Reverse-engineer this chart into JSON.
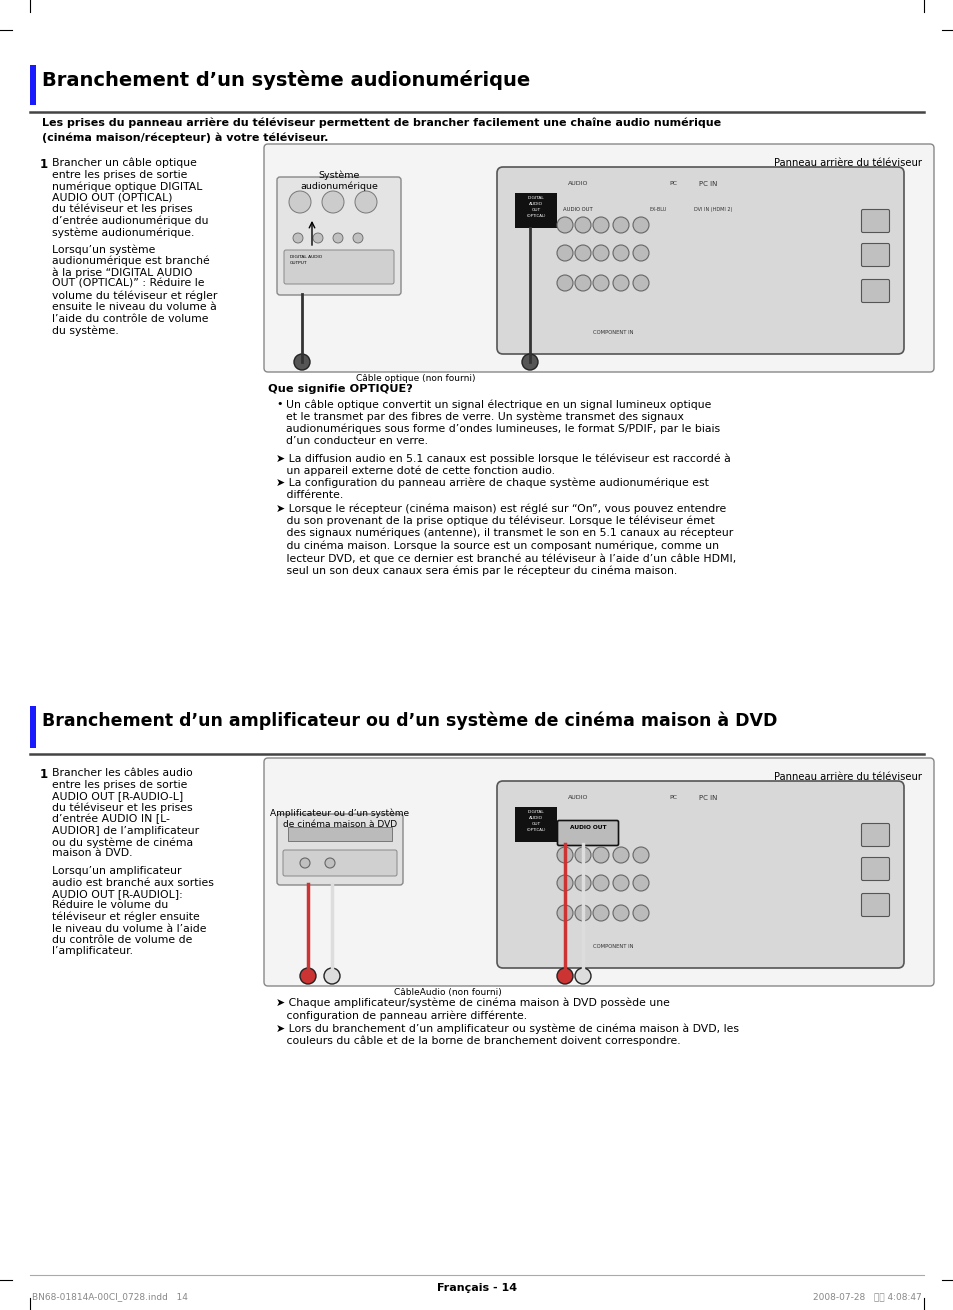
{
  "page_bg": "#ffffff",
  "section1_title": "Branchement d’un système audionumérique",
  "section1_subtitle": "Les prises du panneau arrière du téléviseur permettent de brancher facilement une chaîne audio numérique\n(cinéma maison/récepteur) à votre téléviseur.",
  "section1_step_text_lines": [
    "Brancher un câble optique",
    "entre les prises de sortie",
    "numérique optique DIGITAL",
    "AUDIO OUT (OPTICAL)",
    "du téléviseur et les prises",
    "d’entrée audionumérique du",
    "système audionumérique."
  ],
  "section1_step_text2_lines": [
    "Lorsqu’un système",
    "audionumérique est branché",
    "à la prise “DIGITAL AUDIO",
    "OUT (OPTICAL)” : Réduire le",
    "volume du téléviseur et régler",
    "ensuite le niveau du volume à",
    "l’aide du contrôle de volume",
    "du système."
  ],
  "section1_optique_title": "Que signifie OPTIQUE?",
  "section1_bullet1_lines": [
    "Un câble optique convertit un signal électrique en un signal lumineux optique",
    "et le transmet par des fibres de verre. Un système transmet des signaux",
    "audionumériques sous forme d’ondes lumineuses, le format S/PDIF, par le biais",
    "d’un conducteur en verre."
  ],
  "section1_arrow1_lines": [
    "➤ La diffusion audio en 5.1 canaux est possible lorsque le téléviseur est raccordé à",
    "   un appareil externe doté de cette fonction audio."
  ],
  "section1_arrow2_lines": [
    "➤ La configuration du panneau arrière de chaque système audionumérique est",
    "   différente."
  ],
  "section1_arrow3_lines": [
    "➤ Lorsque le récepteur (cinéma maison) est réglé sur “On”, vous pouvez entendre",
    "   du son provenant de la prise optique du téléviseur. Lorsque le téléviseur émet",
    "   des signaux numériques (antenne), il transmet le son en 5.1 canaux au récepteur",
    "   du cinéma maison. Lorsque la source est un composant numérique, comme un",
    "   lecteur DVD, et que ce dernier est branché au téléviseur à l’aide d’un câble HDMI,",
    "   seul un son deux canaux sera émis par le récepteur du cinéma maison."
  ],
  "section2_title": "Branchement d’un amplificateur ou d’un système de cinéma maison à DVD",
  "section2_step_text_lines": [
    "Brancher les câbles audio",
    "entre les prises de sortie",
    "AUDIO OUT [R-AUDIO-L]",
    "du téléviseur et les prises",
    "d’entrée AUDIO IN [L-",
    "AUDIOR] de l’amplificateur",
    "ou du système de cinéma",
    "maison à DVD."
  ],
  "section2_step_text2_lines": [
    "Lorsqu’un amplificateur",
    "audio est branché aux sorties",
    "AUDIO OUT [R-AUDIOL]:",
    "Réduire le volume du",
    "téléviseur et régler ensuite",
    "le niveau du volume à l’aide",
    "du contrôle de volume de",
    "l’amplificateur."
  ],
  "section2_arrow1_lines": [
    "➤ Chaque amplificateur/système de cinéma maison à DVD possède une",
    "   configuration de panneau arrière différente."
  ],
  "section2_arrow2_lines": [
    "➤ Lors du branchement d’un amplificateur ou système de cinéma maison à DVD, les",
    "   couleurs du câble et de la borne de branchement doivent correspondre."
  ],
  "footer_text": "Français - 14",
  "footer_left": "BN68-01814A-00CI_0728.indd   14",
  "footer_right": "2008-07-28   오후 4:08:47",
  "diagram1_panneau_label": "Panneau arrière du téléviseur",
  "diagram1_systeme_label": "Système\naudionumérique",
  "diagram1_cable_label": "Câble optique (non fourni)",
  "diagram2_panneau_label": "Panneau arrière du téléviseur",
  "diagram2_ampli_label": "Amplificateur ou d’un système\nde cinéma maison à DVD",
  "diagram2_cable_label": "CâbleAudio (non fourni)"
}
